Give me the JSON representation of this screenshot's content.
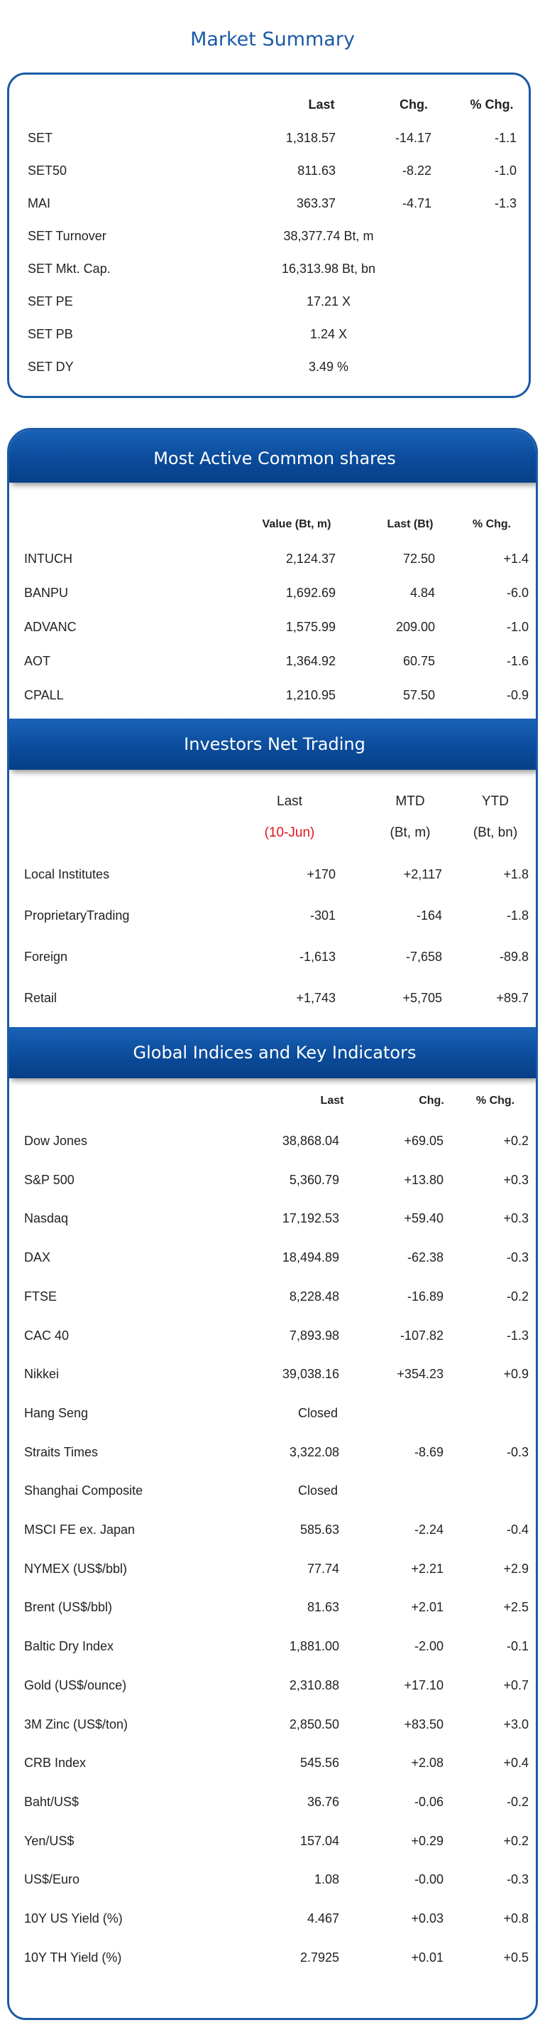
{
  "page_title": "Market Summary",
  "market_summary": {
    "headers": {
      "last": "Last",
      "chg": "Chg.",
      "pct": "% Chg."
    },
    "rows": [
      {
        "name": "SET",
        "last": "1,318.57",
        "chg": "-14.17",
        "pct": "-1.1"
      },
      {
        "name": "SET50",
        "last": "811.63",
        "chg": "-8.22",
        "pct": "-1.0"
      },
      {
        "name": "MAI",
        "last": "363.37",
        "chg": "-4.71",
        "pct": "-1.3"
      }
    ],
    "extra": [
      {
        "name": "SET Turnover",
        "value": "38,377.74 Bt, m"
      },
      {
        "name": "SET Mkt. Cap.",
        "value": "16,313.98 Bt, bn"
      },
      {
        "name": "SET PE",
        "value": "17.21 X"
      },
      {
        "name": "SET PB",
        "value": "1.24 X"
      },
      {
        "name": "SET DY",
        "value": "3.49 %"
      }
    ]
  },
  "most_active": {
    "title": "Most Active Common shares",
    "headers": {
      "value": "Value (Bt, m)",
      "last": "Last (Bt)",
      "pct": "% Chg."
    },
    "rows": [
      {
        "name": "INTUCH",
        "value": "2,124.37",
        "last": "72.50",
        "pct": "+1.4"
      },
      {
        "name": "BANPU",
        "value": "1,692.69",
        "last": "4.84",
        "pct": "-6.0"
      },
      {
        "name": "ADVANC",
        "value": "1,575.99",
        "last": "209.00",
        "pct": "-1.0"
      },
      {
        "name": "AOT",
        "value": "1,364.92",
        "last": "60.75",
        "pct": "-1.6"
      },
      {
        "name": "CPALL",
        "value": "1,210.95",
        "last": "57.50",
        "pct": "-0.9"
      }
    ]
  },
  "investors": {
    "title": "Investors Net Trading",
    "headers": {
      "last": "Last",
      "mtd": "MTD",
      "ytd": "YTD",
      "last_sub": "(10-Jun)",
      "mtd_sub": "(Bt, m)",
      "ytd_sub": "(Bt, bn)"
    },
    "rows": [
      {
        "name": "Local Institutes",
        "last": "+170",
        "mtd": "+2,117",
        "ytd": "+1.8"
      },
      {
        "name": "ProprietaryTrading",
        "last": "-301",
        "mtd": "-164",
        "ytd": "-1.8"
      },
      {
        "name": "Foreign",
        "last": "-1,613",
        "mtd": "-7,658",
        "ytd": "-89.8"
      },
      {
        "name": "Retail",
        "last": "+1,743",
        "mtd": "+5,705",
        "ytd": "+89.7"
      }
    ],
    "accent_color": "#e0141a"
  },
  "global": {
    "title": "Global Indices and Key Indicators",
    "headers": {
      "last": "Last",
      "chg": "Chg.",
      "pct": "% Chg."
    },
    "rows": [
      {
        "name": "Dow Jones",
        "last": "38,868.04",
        "chg": "+69.05",
        "pct": "+0.2"
      },
      {
        "name": "S&P 500",
        "last": "5,360.79",
        "chg": "+13.80",
        "pct": "+0.3"
      },
      {
        "name": "Nasdaq",
        "last": "17,192.53",
        "chg": "+59.40",
        "pct": "+0.3"
      },
      {
        "name": "DAX",
        "last": "18,494.89",
        "chg": "-62.38",
        "pct": "-0.3"
      },
      {
        "name": "FTSE",
        "last": "8,228.48",
        "chg": "-16.89",
        "pct": "-0.2"
      },
      {
        "name": "CAC 40",
        "last": "7,893.98",
        "chg": "-107.82",
        "pct": "-1.3"
      },
      {
        "name": "Nikkei",
        "last": "39,038.16",
        "chg": "+354.23",
        "pct": "+0.9"
      },
      {
        "name": "Hang Seng",
        "last": "Closed",
        "chg": "",
        "pct": ""
      },
      {
        "name": "Straits Times",
        "last": "3,322.08",
        "chg": "-8.69",
        "pct": "-0.3"
      },
      {
        "name": "Shanghai Composite",
        "last": "Closed",
        "chg": "",
        "pct": ""
      },
      {
        "name": "MSCI FE ex. Japan",
        "last": "585.63",
        "chg": "-2.24",
        "pct": "-0.4"
      },
      {
        "name": "NYMEX (US$/bbl)",
        "last": "77.74",
        "chg": "+2.21",
        "pct": "+2.9"
      },
      {
        "name": "Brent (US$/bbl)",
        "last": "81.63",
        "chg": "+2.01",
        "pct": "+2.5"
      },
      {
        "name": "Baltic Dry Index",
        "last": "1,881.00",
        "chg": "-2.00",
        "pct": "-0.1"
      },
      {
        "name": "Gold (US$/ounce)",
        "last": "2,310.88",
        "chg": "+17.10",
        "pct": "+0.7"
      },
      {
        "name": "3M Zinc (US$/ton)",
        "last": "2,850.50",
        "chg": "+83.50",
        "pct": "+3.0"
      },
      {
        "name": "CRB Index",
        "last": "545.56",
        "chg": "+2.08",
        "pct": "+0.4"
      },
      {
        "name": "Baht/US$",
        "last": "36.76",
        "chg": "-0.06",
        "pct": "-0.2"
      },
      {
        "name": "Yen/US$",
        "last": "157.04",
        "chg": "+0.29",
        "pct": "+0.2"
      },
      {
        "name": "US$/Euro",
        "last": "1.08",
        "chg": "-0.00",
        "pct": "-0.3"
      },
      {
        "name": "10Y US Yield (%)",
        "last": "4.467",
        "chg": "+0.03",
        "pct": "+0.8"
      },
      {
        "name": "10Y TH Yield (%)",
        "last": "2.7925",
        "chg": "+0.01",
        "pct": "+0.5"
      }
    ]
  },
  "colors": {
    "brand_blue": "#1a5aa6",
    "band_blue": "#0a4a99"
  }
}
